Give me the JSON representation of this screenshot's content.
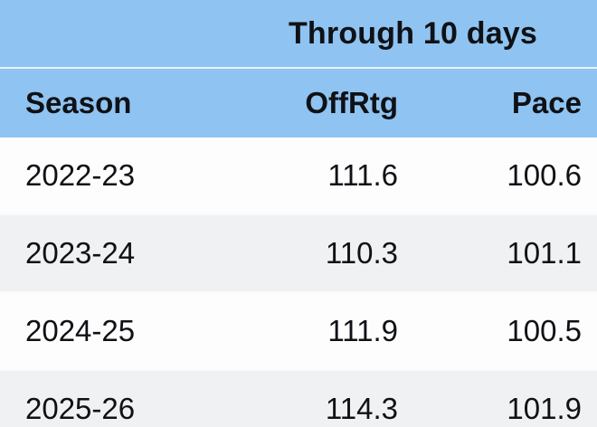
{
  "header": {
    "title": "Through 10 days"
  },
  "columns": {
    "season": "Season",
    "offrtg": "OffRtg",
    "pace": "Pace"
  },
  "chart_data": {
    "type": "table",
    "title": "Through 10 days",
    "columns": [
      "Season",
      "OffRtg",
      "Pace"
    ],
    "rows": [
      [
        "2022-23",
        "111.6",
        "100.6"
      ],
      [
        "2023-24",
        "110.3",
        "101.1"
      ],
      [
        "2024-25",
        "111.9",
        "100.5"
      ],
      [
        "2025-26",
        "114.3",
        "101.9"
      ]
    ],
    "layout_hints": {
      "title_spans": "OffRtg and Pace columns",
      "zebra_striping": true,
      "numeric_alignment": "right"
    }
  },
  "colors": {
    "header_blue": "#8fc3f1",
    "header_divider": "#eaf4fd",
    "row_white": "#fdfdfe",
    "row_gray": "#f0f1f3",
    "row_separator": "#f8fafc",
    "text": "#0f1115"
  }
}
